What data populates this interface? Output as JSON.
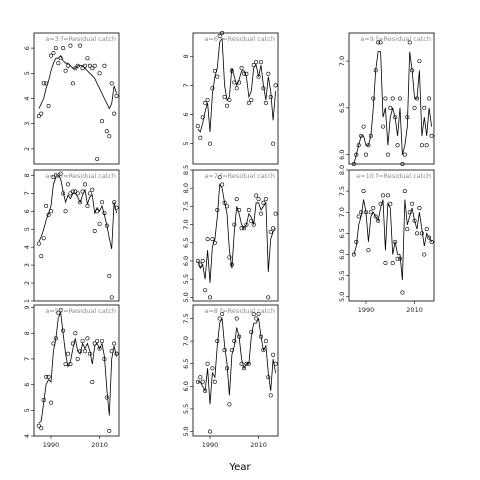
{
  "colors": {
    "frame": "#000000",
    "line": "#000000",
    "point": "#000000",
    "label": "#8c8c8c",
    "background": "#ffffff"
  },
  "xlabel": "Year",
  "chart_data": {
    "type": "line",
    "layout": "3x3 grid of panels, column-major order; empty top-right-bottom slot",
    "xlim": [
      1983,
      2018
    ],
    "xticks": [
      1990,
      2010
    ],
    "x": [
      1985,
      1986,
      1987,
      1988,
      1989,
      1990,
      1991,
      1992,
      1993,
      1994,
      1995,
      1996,
      1997,
      1998,
      1999,
      2000,
      2001,
      2002,
      2003,
      2004,
      2005,
      2006,
      2007,
      2008,
      2009,
      2010,
      2011,
      2012,
      2013,
      2014,
      2015,
      2016,
      2017
    ],
    "panels": [
      {
        "label": "a=3 f=Residual catch",
        "ylim": [
          1.4,
          6.6
        ],
        "yticks": [
          2,
          3,
          4,
          5,
          6
        ],
        "points": [
          3.3,
          3.4,
          4.6,
          4.6,
          3.7,
          5.7,
          5.8,
          6.0,
          5.4,
          5.6,
          6.0,
          5.1,
          5.3,
          6.1,
          4.6,
          5.2,
          5.3,
          6.1,
          5.2,
          5.3,
          5.6,
          5.3,
          5.2,
          5.3,
          1.6,
          5.0,
          3.1,
          5.3,
          2.7,
          2.5,
          4.6,
          3.4,
          4.1
        ],
        "fitted": [
          3.6,
          3.8,
          4.0,
          4.4,
          4.7,
          5.1,
          5.4,
          5.6,
          5.6,
          5.7,
          5.5,
          5.4,
          5.4,
          5.3,
          5.2,
          5.2,
          5.3,
          5.3,
          5.3,
          5.2,
          5.1,
          5.0,
          4.9,
          4.8,
          4.6,
          4.4,
          4.2,
          4.0,
          3.8,
          3.6,
          3.8,
          4.5,
          4.2
        ]
      },
      {
        "label": "a=4 f=Residual catch",
        "ylim": [
          1.0,
          8.3
        ],
        "yticks": [
          1,
          2,
          3,
          4,
          5,
          6,
          7,
          8
        ],
        "points": [
          4.2,
          3.5,
          4.5,
          6.3,
          5.8,
          6.0,
          7.9,
          8.0,
          8.0,
          8.1,
          7.0,
          6.0,
          7.5,
          7.0,
          7.1,
          7.1,
          7.0,
          6.5,
          7.1,
          7.5,
          6.3,
          7.0,
          7.2,
          4.9,
          6.0,
          5.3,
          6.5,
          5.9,
          5.2,
          2.4,
          1.2,
          6.5,
          6.2
        ],
        "fitted": [
          4.3,
          4.6,
          5.0,
          5.5,
          5.9,
          6.3,
          7.5,
          7.9,
          8.0,
          7.8,
          7.1,
          6.5,
          6.9,
          6.7,
          7.0,
          7.0,
          6.8,
          6.5,
          6.9,
          7.2,
          6.4,
          6.8,
          6.9,
          5.9,
          6.2,
          6.0,
          6.3,
          5.8,
          5.2,
          4.5,
          3.9,
          6.5,
          5.9
        ]
      },
      {
        "label": "a=5 f=Residual catch",
        "ylim": [
          4.0,
          9.1
        ],
        "yticks": [
          4,
          5,
          6,
          7,
          8,
          9
        ],
        "points": [
          4.4,
          4.3,
          5.4,
          6.3,
          6.3,
          5.3,
          7.6,
          7.8,
          8.8,
          8.9,
          8.1,
          6.8,
          7.2,
          6.8,
          7.6,
          8.0,
          7.0,
          7.3,
          7.7,
          7.3,
          7.8,
          7.2,
          6.1,
          7.6,
          7.7,
          7.4,
          7.7,
          7.0,
          5.5,
          4.2,
          7.3,
          7.6,
          7.2
        ],
        "fitted": [
          4.5,
          4.6,
          5.3,
          6.0,
          6.2,
          6.1,
          7.3,
          7.8,
          8.6,
          8.8,
          8.0,
          7.2,
          6.7,
          6.9,
          7.4,
          7.8,
          7.3,
          7.2,
          7.6,
          7.4,
          7.6,
          7.3,
          6.8,
          7.5,
          7.6,
          7.4,
          7.6,
          7.1,
          5.8,
          4.8,
          7.0,
          7.5,
          7.1
        ]
      },
      {
        "label": "a=6 f=Residual catch",
        "ylim": [
          4.3,
          8.8
        ],
        "yticks": [
          5,
          6,
          7,
          8
        ],
        "points": [
          5.6,
          5.2,
          5.9,
          6.4,
          6.5,
          5.0,
          6.9,
          7.5,
          7.3,
          8.7,
          8.8,
          6.6,
          6.3,
          6.5,
          7.5,
          7.1,
          6.9,
          7.1,
          7.6,
          7.4,
          7.4,
          6.4,
          6.5,
          7.7,
          7.8,
          7.3,
          7.8,
          6.9,
          6.4,
          7.4,
          6.6,
          5.0,
          7.0
        ],
        "fitted": [
          5.5,
          5.4,
          5.7,
          6.1,
          6.4,
          5.4,
          6.7,
          7.3,
          7.6,
          8.5,
          8.6,
          7.0,
          6.5,
          6.6,
          7.6,
          7.3,
          7.0,
          7.2,
          7.5,
          7.5,
          7.3,
          6.6,
          6.8,
          7.6,
          7.7,
          7.3,
          7.7,
          7.0,
          6.5,
          7.3,
          6.8,
          5.8,
          6.8
        ]
      },
      {
        "label": "a=7 f=Residual catch",
        "ylim": [
          4.9,
          8.5
        ],
        "yticks": [
          5.0,
          5.5,
          6.0,
          6.5,
          7.0,
          7.5,
          8.0,
          8.5
        ],
        "points": [
          6.0,
          5.9,
          6.0,
          5.2,
          6.6,
          5.0,
          6.6,
          6.5,
          7.4,
          8.3,
          8.1,
          7.6,
          7.5,
          6.1,
          5.9,
          7.0,
          7.7,
          7.4,
          6.9,
          6.9,
          7.0,
          7.4,
          7.1,
          7.0,
          7.8,
          7.7,
          7.3,
          7.6,
          7.7,
          5.0,
          6.8,
          6.9,
          7.3
        ],
        "fitted": [
          6.0,
          5.8,
          5.9,
          5.5,
          6.3,
          5.4,
          6.4,
          6.6,
          7.2,
          8.1,
          8.0,
          7.6,
          7.3,
          6.3,
          5.8,
          6.8,
          7.5,
          7.3,
          7.0,
          6.9,
          7.0,
          7.3,
          7.2,
          7.0,
          7.6,
          7.6,
          7.4,
          7.5,
          7.6,
          5.7,
          6.6,
          6.8,
          6.9
        ]
      },
      {
        "label": "a=8 f=Residual catch",
        "ylim": [
          4.9,
          7.8
        ],
        "yticks": [
          5.0,
          5.5,
          6.0,
          6.5,
          7.0,
          7.5
        ],
        "points": [
          6.1,
          6.2,
          6.1,
          5.9,
          6.5,
          5.0,
          6.4,
          6.1,
          7.0,
          7.5,
          7.6,
          6.8,
          6.4,
          5.6,
          6.8,
          7.0,
          7.5,
          7.1,
          6.5,
          6.4,
          6.5,
          6.5,
          7.2,
          7.6,
          7.5,
          7.6,
          7.1,
          6.8,
          7.0,
          6.2,
          5.8,
          6.7,
          6.5
        ],
        "fitted": [
          6.1,
          6.1,
          6.0,
          5.9,
          6.4,
          5.6,
          6.3,
          6.2,
          6.9,
          7.4,
          7.5,
          6.9,
          6.5,
          5.8,
          6.7,
          6.9,
          7.3,
          7.1,
          6.6,
          6.4,
          6.5,
          6.5,
          7.1,
          7.4,
          7.4,
          7.5,
          7.1,
          6.8,
          6.9,
          6.3,
          5.9,
          6.6,
          6.3
        ]
      },
      {
        "label": "a=9 f=Residual catch",
        "ylim": [
          5.9,
          7.3
        ],
        "yticks": [
          6.0,
          6.5,
          7.0
        ],
        "points": [
          5.9,
          6.0,
          6.1,
          6.2,
          6.3,
          6.0,
          6.1,
          6.2,
          6.6,
          6.9,
          7.2,
          7.2,
          6.3,
          6.6,
          6.0,
          6.5,
          6.6,
          6.4,
          6.1,
          6.6,
          5.9,
          6.0,
          6.4,
          7.2,
          6.9,
          6.5,
          6.6,
          7.0,
          6.1,
          6.5,
          6.1,
          6.6,
          6.2
        ],
        "fitted": [
          5.9,
          6.0,
          6.1,
          6.2,
          6.2,
          6.1,
          6.1,
          6.2,
          6.5,
          6.9,
          7.1,
          7.1,
          6.4,
          6.5,
          6.1,
          6.4,
          6.5,
          6.4,
          6.2,
          6.5,
          6.0,
          6.1,
          6.3,
          7.1,
          6.9,
          6.6,
          6.6,
          6.9,
          6.2,
          6.4,
          6.2,
          6.5,
          6.3
        ]
      },
      {
        "label": "a=10 f=Residual catch",
        "ylim": [
          4.9,
          8.0
        ],
        "yticks": [
          5.0,
          5.5,
          6.0,
          6.5,
          7.0,
          7.5,
          8.0
        ],
        "points": [
          6.0,
          6.3,
          6.9,
          7.0,
          7.5,
          7.0,
          6.1,
          7.0,
          7.1,
          6.9,
          6.8,
          7.2,
          7.4,
          5.8,
          7.4,
          7.2,
          5.8,
          6.3,
          5.9,
          5.9,
          5.1,
          7.5,
          6.6,
          7.0,
          7.2,
          6.8,
          6.5,
          7.1,
          6.5,
          6.0,
          6.6,
          6.4,
          6.3
        ],
        "fitted": [
          6.0,
          6.2,
          6.7,
          6.9,
          7.3,
          7.0,
          6.3,
          6.9,
          7.0,
          6.9,
          6.8,
          7.1,
          7.3,
          6.1,
          7.2,
          7.1,
          6.0,
          6.3,
          6.0,
          6.0,
          5.4,
          7.3,
          6.7,
          6.9,
          7.1,
          6.8,
          6.6,
          7.0,
          6.6,
          6.2,
          6.5,
          6.4,
          6.3
        ]
      }
    ]
  }
}
